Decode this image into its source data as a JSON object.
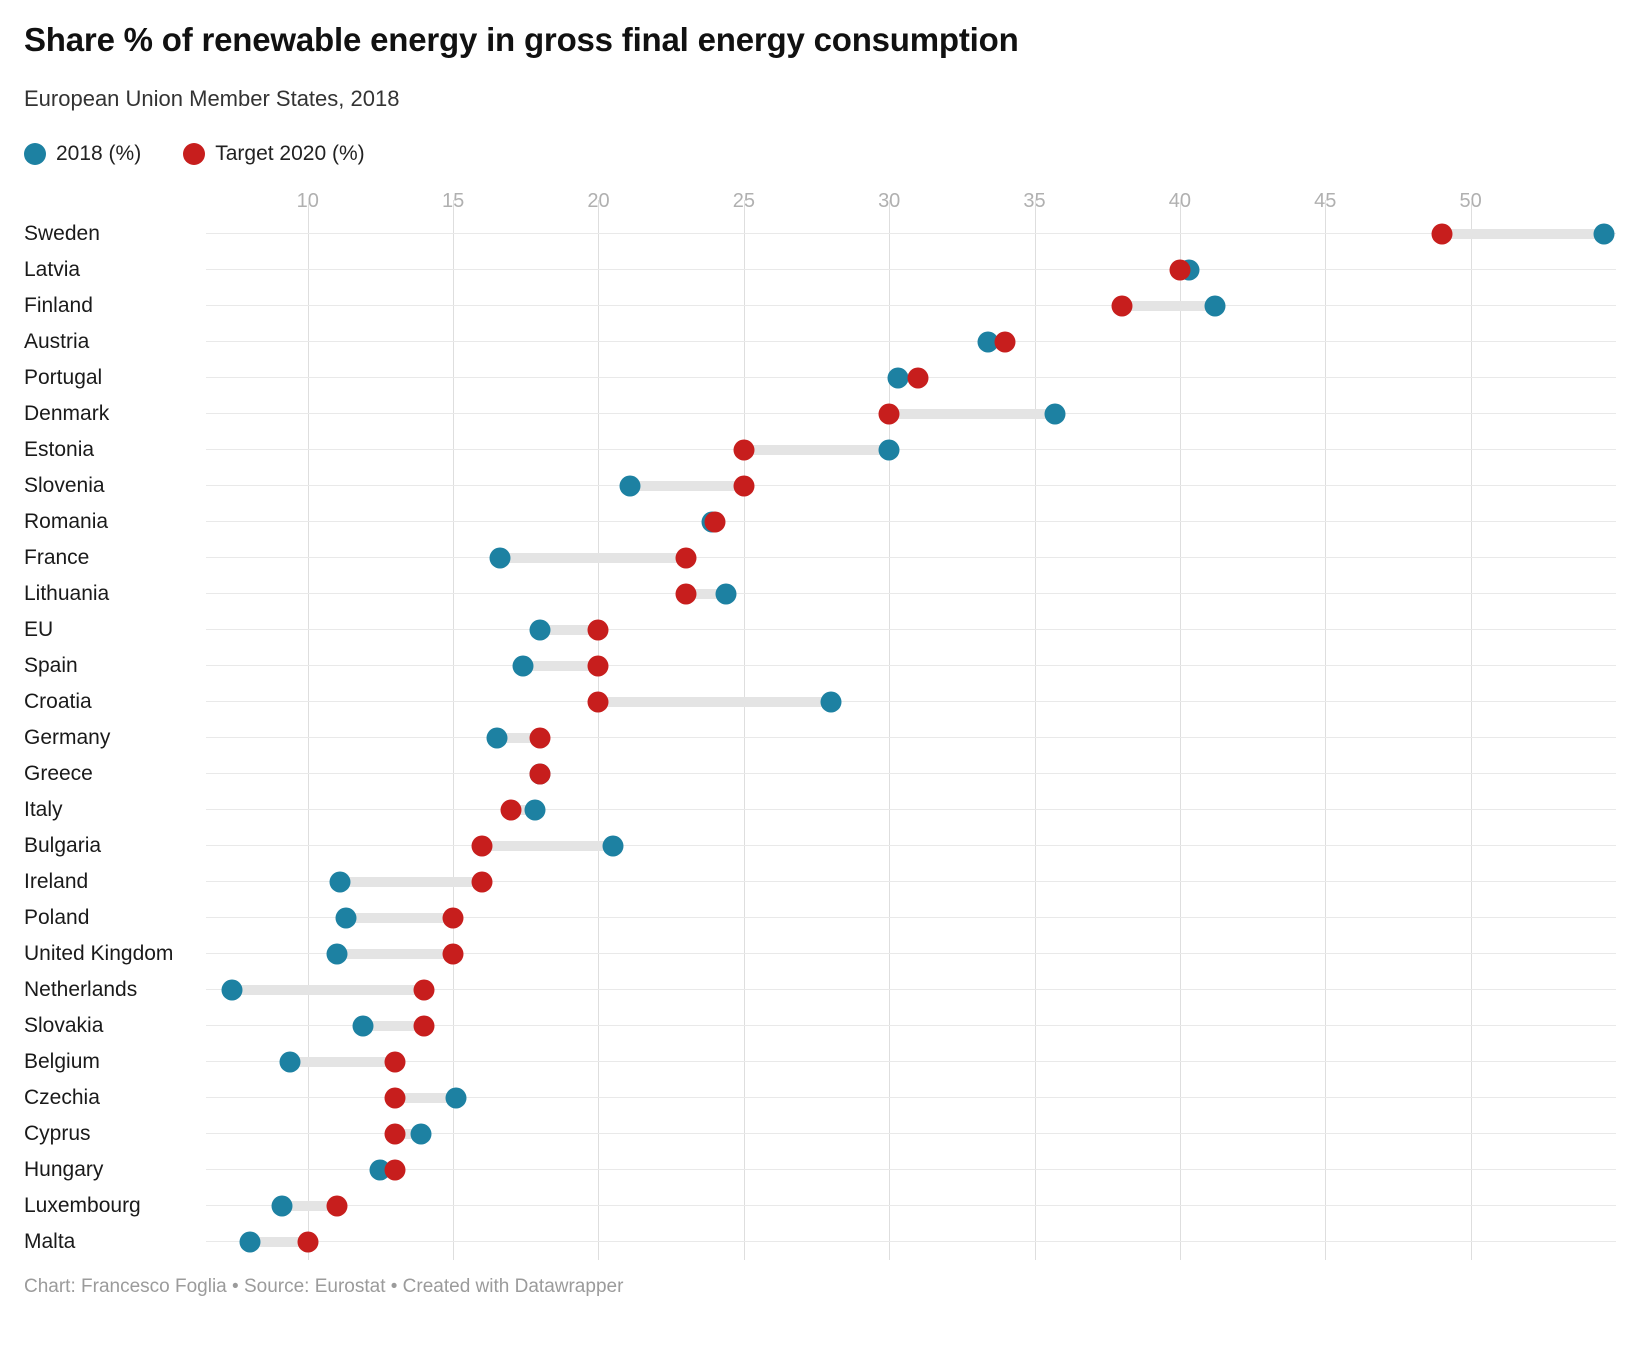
{
  "title": "Share % of renewable energy in gross final energy consumption",
  "subtitle": "European Union Member States, 2018",
  "legend": {
    "items": [
      {
        "label": "2018 (%)",
        "color": "#1d81a2"
      },
      {
        "label": "Target 2020 (%)",
        "color": "#c71e1d"
      }
    ]
  },
  "footer": "Chart: Francesco Foglia • Source: Eurostat • Created with Datawrapper",
  "colors": {
    "series_2018": "#1d81a2",
    "series_target": "#c71e1d",
    "connector": "#e4e4e4",
    "grid_vertical": "#dedede",
    "grid_row": "#e9e9e9",
    "tick_label": "#b0b0b0",
    "footer_text": "#9b9b9b"
  },
  "chart_data": {
    "type": "scatter",
    "variant": "dumbbell-range",
    "title": "Share % of renewable energy in gross final energy consumption",
    "subtitle": "European Union Member States, 2018",
    "xlabel": "",
    "ylabel": "",
    "xlim": [
      6.5,
      55.0
    ],
    "xticks": [
      10,
      15,
      20,
      25,
      30,
      35,
      40,
      45,
      50
    ],
    "grid": true,
    "legend_position": "top-left",
    "categories": [
      "Sweden",
      "Latvia",
      "Finland",
      "Austria",
      "Portugal",
      "Denmark",
      "Estonia",
      "Slovenia",
      "Romania",
      "France",
      "Lithuania",
      "EU",
      "Spain",
      "Croatia",
      "Germany",
      "Greece",
      "Italy",
      "Bulgaria",
      "Ireland",
      "Poland",
      "United Kingdom",
      "Netherlands",
      "Slovakia",
      "Belgium",
      "Czechia",
      "Cyprus",
      "Hungary",
      "Luxembourg",
      "Malta"
    ],
    "series": [
      {
        "name": "2018 (%)",
        "color": "#1d81a2",
        "values": [
          54.6,
          40.3,
          41.2,
          33.4,
          30.3,
          35.7,
          30.0,
          21.1,
          23.9,
          16.6,
          24.4,
          18.0,
          17.4,
          28.0,
          16.5,
          18.0,
          17.8,
          20.5,
          11.1,
          11.3,
          11.0,
          7.4,
          11.9,
          9.4,
          15.1,
          13.9,
          12.5,
          9.1,
          8.0
        ]
      },
      {
        "name": "Target 2020 (%)",
        "color": "#c71e1d",
        "values": [
          49,
          40,
          38,
          34,
          31,
          30,
          25,
          25,
          24,
          23,
          23,
          20,
          20,
          20,
          18,
          18,
          17,
          16,
          16,
          15,
          15,
          14,
          14,
          13,
          13,
          13,
          13,
          11,
          10
        ]
      }
    ]
  }
}
